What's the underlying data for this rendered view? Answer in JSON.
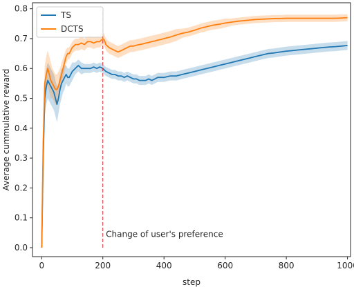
{
  "chart_data": {
    "type": "line",
    "title": "",
    "xlabel": "step",
    "ylabel": "Average cummulative reward",
    "xlim": [
      -30,
      1010
    ],
    "ylim": [
      -0.03,
      0.82
    ],
    "xticks": [
      0,
      200,
      400,
      600,
      800,
      1000
    ],
    "xtick_labels": [
      "0",
      "200",
      "400",
      "600",
      "800",
      "1000"
    ],
    "yticks": [
      0.0,
      0.1,
      0.2,
      0.3,
      0.4,
      0.5,
      0.6,
      0.7,
      0.8
    ],
    "ytick_labels": [
      "0.0",
      "0.1",
      "0.2",
      "0.3",
      "0.4",
      "0.5",
      "0.6",
      "0.7",
      "0.8"
    ],
    "grid": false,
    "legend_position": "top-left",
    "series": [
      {
        "name": "TS",
        "color": "#1f77b4",
        "x": [
          0,
          5,
          10,
          15,
          20,
          25,
          30,
          35,
          40,
          45,
          50,
          55,
          60,
          65,
          70,
          75,
          80,
          85,
          90,
          100,
          110,
          120,
          130,
          140,
          150,
          160,
          170,
          180,
          190,
          200,
          210,
          220,
          230,
          240,
          250,
          260,
          270,
          280,
          290,
          300,
          310,
          320,
          330,
          340,
          350,
          360,
          370,
          380,
          390,
          400,
          420,
          440,
          460,
          480,
          500,
          520,
          540,
          560,
          580,
          600,
          620,
          640,
          660,
          680,
          700,
          720,
          740,
          760,
          780,
          800,
          820,
          840,
          860,
          880,
          900,
          920,
          940,
          960,
          980,
          1000
        ],
        "values": [
          0.0,
          0.3,
          0.5,
          0.54,
          0.56,
          0.55,
          0.54,
          0.53,
          0.52,
          0.5,
          0.48,
          0.5,
          0.53,
          0.55,
          0.56,
          0.57,
          0.58,
          0.57,
          0.57,
          0.59,
          0.6,
          0.61,
          0.6,
          0.6,
          0.6,
          0.6,
          0.605,
          0.6,
          0.605,
          0.6,
          0.59,
          0.585,
          0.58,
          0.58,
          0.575,
          0.575,
          0.57,
          0.575,
          0.57,
          0.565,
          0.565,
          0.56,
          0.56,
          0.56,
          0.565,
          0.56,
          0.565,
          0.57,
          0.57,
          0.57,
          0.575,
          0.575,
          0.58,
          0.585,
          0.59,
          0.595,
          0.6,
          0.605,
          0.61,
          0.615,
          0.62,
          0.625,
          0.63,
          0.635,
          0.64,
          0.645,
          0.65,
          0.652,
          0.655,
          0.658,
          0.66,
          0.662,
          0.664,
          0.666,
          0.668,
          0.67,
          0.672,
          0.673,
          0.675,
          0.677
        ],
        "spread": [
          0.0,
          0.06,
          0.06,
          0.06,
          0.06,
          0.06,
          0.06,
          0.06,
          0.06,
          0.06,
          0.06,
          0.05,
          0.05,
          0.05,
          0.04,
          0.04,
          0.03,
          0.03,
          0.03,
          0.03,
          0.02,
          0.02,
          0.02,
          0.015,
          0.015,
          0.015,
          0.015,
          0.015,
          0.015,
          0.015,
          0.015,
          0.015,
          0.015,
          0.015,
          0.015,
          0.015,
          0.015,
          0.015,
          0.015,
          0.015,
          0.015,
          0.015,
          0.015,
          0.015,
          0.015,
          0.015,
          0.015,
          0.015,
          0.015,
          0.015,
          0.015,
          0.015,
          0.015,
          0.015,
          0.015,
          0.015,
          0.015,
          0.015,
          0.015,
          0.015,
          0.015,
          0.015,
          0.015,
          0.015,
          0.015,
          0.015,
          0.015,
          0.015,
          0.015,
          0.015,
          0.015,
          0.015,
          0.015,
          0.015,
          0.015,
          0.015,
          0.015,
          0.015,
          0.015,
          0.015
        ]
      },
      {
        "name": "DCTS",
        "color": "#ff7f0e",
        "x": [
          0,
          5,
          10,
          15,
          20,
          25,
          30,
          35,
          40,
          45,
          50,
          55,
          60,
          65,
          70,
          75,
          80,
          85,
          90,
          100,
          110,
          120,
          130,
          140,
          150,
          160,
          170,
          180,
          190,
          195,
          200,
          205,
          210,
          220,
          230,
          240,
          250,
          260,
          270,
          280,
          290,
          300,
          310,
          320,
          330,
          340,
          350,
          360,
          370,
          380,
          390,
          400,
          420,
          440,
          460,
          480,
          500,
          520,
          540,
          560,
          580,
          600,
          620,
          640,
          660,
          680,
          700,
          720,
          740,
          760,
          780,
          800,
          820,
          840,
          860,
          880,
          900,
          920,
          940,
          960,
          980,
          1000
        ],
        "values": [
          0.0,
          0.35,
          0.55,
          0.58,
          0.6,
          0.58,
          0.56,
          0.55,
          0.54,
          0.53,
          0.53,
          0.54,
          0.56,
          0.58,
          0.6,
          0.62,
          0.64,
          0.65,
          0.65,
          0.67,
          0.68,
          0.68,
          0.685,
          0.68,
          0.69,
          0.69,
          0.685,
          0.69,
          0.69,
          0.695,
          0.7,
          0.695,
          0.68,
          0.67,
          0.665,
          0.66,
          0.655,
          0.66,
          0.665,
          0.67,
          0.675,
          0.675,
          0.678,
          0.68,
          0.682,
          0.685,
          0.687,
          0.69,
          0.692,
          0.695,
          0.697,
          0.7,
          0.705,
          0.712,
          0.718,
          0.722,
          0.728,
          0.735,
          0.74,
          0.745,
          0.748,
          0.752,
          0.755,
          0.758,
          0.76,
          0.762,
          0.764,
          0.765,
          0.766,
          0.767,
          0.767,
          0.768,
          0.768,
          0.768,
          0.768,
          0.768,
          0.768,
          0.768,
          0.768,
          0.768,
          0.769,
          0.77
        ],
        "spread": [
          0.0,
          0.06,
          0.06,
          0.06,
          0.06,
          0.06,
          0.06,
          0.05,
          0.05,
          0.05,
          0.05,
          0.05,
          0.04,
          0.04,
          0.035,
          0.03,
          0.025,
          0.02,
          0.02,
          0.02,
          0.02,
          0.02,
          0.02,
          0.02,
          0.02,
          0.02,
          0.02,
          0.02,
          0.02,
          0.02,
          0.02,
          0.02,
          0.02,
          0.02,
          0.02,
          0.02,
          0.02,
          0.02,
          0.02,
          0.02,
          0.02,
          0.02,
          0.02,
          0.02,
          0.02,
          0.02,
          0.02,
          0.02,
          0.02,
          0.02,
          0.02,
          0.02,
          0.02,
          0.02,
          0.015,
          0.015,
          0.015,
          0.015,
          0.015,
          0.015,
          0.015,
          0.015,
          0.012,
          0.012,
          0.012,
          0.012,
          0.012,
          0.012,
          0.012,
          0.012,
          0.012,
          0.012,
          0.012,
          0.012,
          0.012,
          0.012,
          0.012,
          0.012,
          0.012,
          0.012,
          0.012,
          0.012
        ]
      }
    ],
    "vline": {
      "x": 200,
      "color": "#d62728",
      "style": "dashed"
    },
    "annotations": [
      {
        "text": "Change of user's preference",
        "x": 210,
        "y": 0.045
      }
    ]
  }
}
